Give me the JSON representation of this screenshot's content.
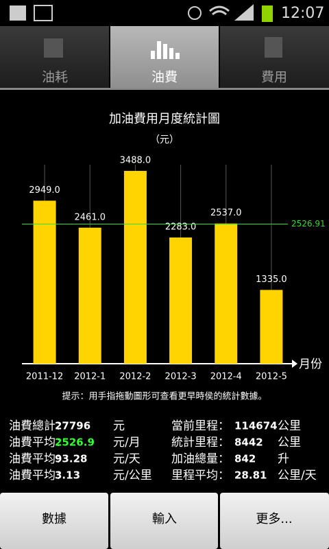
{
  "status_bar": {
    "time": "12:07"
  },
  "tabs": [
    "油耗",
    "油費",
    "費用"
  ],
  "chart_data": {
    "type": "bar",
    "title": "加油費用月度統計圖",
    "subtitle": "（元）",
    "x_label": "月份",
    "categories": [
      "2011-12",
      "2012-1",
      "2012-2",
      "2012-3",
      "2012-4",
      "2012-5"
    ],
    "values": [
      2949,
      2461,
      3488,
      2283,
      2537,
      1335
    ],
    "value_labels": [
      "2949.0",
      "2461.0",
      "3488.0",
      "2283.0",
      "2537.0",
      "1335.0"
    ],
    "color": "#ffd400",
    "ylim": [
      0,
      3600
    ],
    "average": 2526.91,
    "average_color": "#33dd33",
    "grid": true
  },
  "hint": "提示：用手指拖動圖形可查看更早時侯的統計數據。",
  "stats": {
    "rows": [
      [
        [
          "油費總計：",
          "27796",
          "元"
        ],
        [
          "當前里程：",
          "114674",
          "公里"
        ]
      ],
      [
        [
          "油費平均：",
          "2526.9",
          "元/月"
        ],
        [
          "統計里程：",
          "8442",
          "公里"
        ]
      ],
      [
        [
          "油費平均：",
          "93.28",
          "元/天"
        ],
        [
          "加油總量：",
          "842",
          "升"
        ]
      ],
      [
        [
          "油費平均：",
          "3.13",
          "元/公里"
        ],
        [
          "里程平均：",
          "28.81",
          "公里/天"
        ]
      ]
    ]
  },
  "buttons": [
    "數據",
    "輸入",
    "更多..."
  ]
}
